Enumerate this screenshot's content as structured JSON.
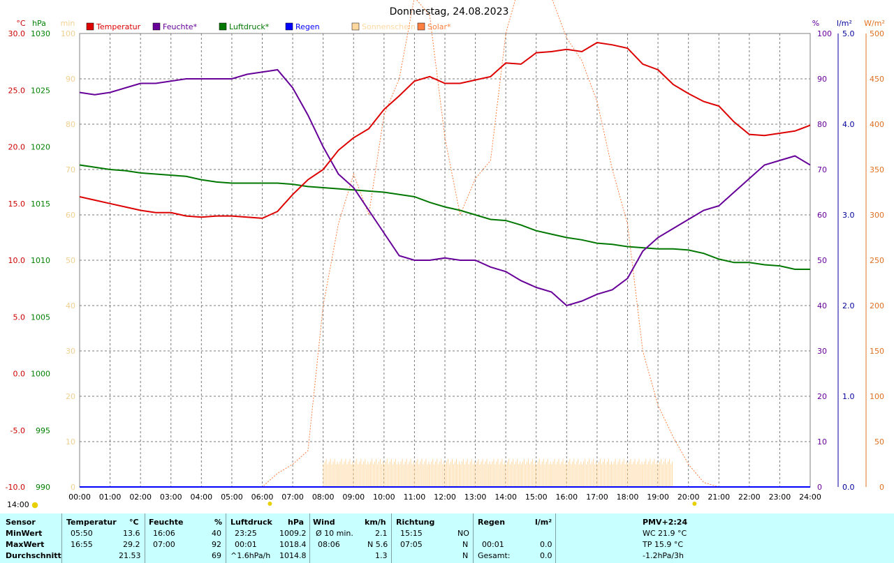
{
  "title": "Donnerstag, 24.08.2023",
  "axes": {
    "left1": {
      "unit": "°C",
      "ticks": [
        "30.0",
        "25.0",
        "20.0",
        "15.0",
        "10.0",
        "5.0",
        "0.0",
        "-5.0",
        "-10.0"
      ],
      "color": "#cc0000"
    },
    "left2": {
      "unit": "hPa",
      "ticks": [
        "1030",
        "1025",
        "1020",
        "1015",
        "1010",
        "1005",
        "1000",
        "995",
        "990"
      ],
      "color": "#008000"
    },
    "left3": {
      "unit": "min",
      "ticks": [
        "100",
        "90",
        "80",
        "70",
        "60",
        "50",
        "40",
        "30",
        "20",
        "10",
        "0"
      ],
      "color": "#f0d090"
    },
    "right1": {
      "unit": "%",
      "ticks": [
        "100",
        "90",
        "80",
        "70",
        "60",
        "50",
        "40",
        "30",
        "20",
        "10",
        "0"
      ],
      "color": "#660099"
    },
    "right2": {
      "unit": "l/m²",
      "ticks": [
        "5.0",
        "4.0",
        "3.0",
        "2.0",
        "1.0",
        "0.0"
      ],
      "color": "#000099"
    },
    "right3": {
      "unit": "W/m²",
      "ticks": [
        "500",
        "450",
        "400",
        "350",
        "300",
        "250",
        "200",
        "150",
        "100",
        "50",
        "0"
      ],
      "color": "#e07020"
    }
  },
  "legend": [
    {
      "label": "Temperatur",
      "color": "#dd0000"
    },
    {
      "label": "Feuchte*",
      "color": "#660099"
    },
    {
      "label": "Luftdruck*",
      "color": "#007700"
    },
    {
      "label": "Regen",
      "color": "#0000ff"
    },
    {
      "label": "Sonnenschein",
      "color": "#ffd8a0"
    },
    {
      "label": "Solar*",
      "color": "#ff8040"
    }
  ],
  "chart_data": {
    "type": "line",
    "x_ticks": [
      "00:00",
      "01:00",
      "02:00",
      "03:00",
      "04:00",
      "05:00",
      "06:00",
      "07:00",
      "08:00",
      "09:00",
      "10:00",
      "11:00",
      "12:00",
      "13:00",
      "14:00",
      "15:00",
      "16:00",
      "17:00",
      "18:00",
      "19:00",
      "20:00",
      "21:00",
      "22:00",
      "23:00",
      "24:00"
    ],
    "x": [
      0,
      0.5,
      1,
      1.5,
      2,
      2.5,
      3,
      3.5,
      4,
      4.5,
      5,
      5.5,
      6,
      6.5,
      7,
      7.5,
      8,
      8.5,
      9,
      9.5,
      10,
      10.5,
      11,
      11.5,
      12,
      12.5,
      13,
      13.5,
      14,
      14.5,
      15,
      15.5,
      16,
      16.5,
      17,
      17.5,
      18,
      18.5,
      19,
      19.5,
      20,
      20.5,
      21,
      21.5,
      22,
      22.5,
      23,
      23.5,
      24
    ],
    "series": [
      {
        "name": "Temperatur",
        "unit": "°C",
        "color": "#dd0000",
        "values": [
          15.6,
          15.3,
          15.0,
          14.7,
          14.4,
          14.2,
          14.2,
          13.9,
          13.8,
          13.9,
          13.9,
          13.8,
          13.7,
          14.3,
          15.8,
          17.1,
          18.0,
          19.7,
          20.8,
          21.6,
          23.3,
          24.5,
          25.8,
          26.2,
          25.6,
          25.6,
          25.9,
          26.2,
          27.4,
          27.3,
          28.3,
          28.4,
          28.6,
          28.4,
          29.2,
          29.0,
          28.7,
          27.3,
          26.8,
          25.5,
          24.7,
          24.0,
          23.6,
          22.2,
          21.1,
          21.0,
          21.2,
          21.4,
          21.9
        ]
      },
      {
        "name": "Feuchte*",
        "unit": "%",
        "color": "#660099",
        "values": [
          87,
          86.5,
          87,
          88,
          89,
          89,
          89.5,
          90,
          90,
          90,
          90,
          91,
          91.5,
          92,
          88,
          82,
          75,
          69,
          66,
          61,
          56,
          51,
          50,
          50,
          50.5,
          50,
          50,
          48.5,
          47.5,
          45.5,
          44,
          43,
          40,
          41,
          42.5,
          43.5,
          46,
          52,
          55,
          57,
          59,
          61,
          62,
          65,
          68,
          71,
          72,
          73,
          71
        ]
      },
      {
        "name": "Luftdruck*",
        "unit": "hPa",
        "color": "#007700",
        "values": [
          1018.4,
          1018.2,
          1018.0,
          1017.9,
          1017.7,
          1017.6,
          1017.5,
          1017.4,
          1017.1,
          1016.9,
          1016.8,
          1016.8,
          1016.8,
          1016.8,
          1016.7,
          1016.5,
          1016.4,
          1016.3,
          1016.2,
          1016.1,
          1016.0,
          1015.8,
          1015.6,
          1015.1,
          1014.7,
          1014.4,
          1014.0,
          1013.6,
          1013.5,
          1013.1,
          1012.6,
          1012.3,
          1012.0,
          1011.8,
          1011.5,
          1011.4,
          1011.2,
          1011.1,
          1011.0,
          1011.0,
          1010.9,
          1010.6,
          1010.1,
          1009.8,
          1009.8,
          1009.6,
          1009.5,
          1009.2,
          1009.2
        ]
      },
      {
        "name": "Solar*",
        "unit": "W/m²",
        "color": "#ff8040",
        "values": [
          0,
          0,
          0,
          0,
          0,
          0,
          0,
          0,
          0,
          0,
          0,
          0,
          0,
          15,
          25,
          40,
          200,
          290,
          345,
          300,
          410,
          450,
          540,
          520,
          385,
          300,
          340,
          360,
          500,
          560,
          575,
          540,
          495,
          470,
          425,
          350,
          290,
          150,
          90,
          55,
          25,
          5,
          0,
          0,
          0,
          0,
          0,
          0,
          0
        ]
      },
      {
        "name": "Sonnenschein",
        "unit": "min",
        "color": "#ffd8a0",
        "values": [
          0,
          0,
          0,
          0,
          0,
          0,
          0,
          0,
          0,
          0,
          0,
          0,
          0,
          0,
          0,
          0,
          5,
          5,
          5,
          5,
          5,
          5,
          5,
          5,
          5,
          5,
          5,
          5,
          5,
          5,
          5,
          5,
          5,
          5,
          5,
          5,
          5,
          5,
          5,
          0,
          0,
          0,
          0,
          0,
          0,
          0,
          0,
          0,
          0
        ]
      },
      {
        "name": "Regen",
        "unit": "l/m²",
        "color": "#0000ff",
        "values": [
          0,
          0,
          0,
          0,
          0,
          0,
          0,
          0,
          0,
          0,
          0,
          0,
          0,
          0,
          0,
          0,
          0,
          0,
          0,
          0,
          0,
          0,
          0,
          0,
          0,
          0,
          0,
          0,
          0,
          0,
          0,
          0,
          0,
          0,
          0,
          0,
          0,
          0,
          0,
          0,
          0,
          0,
          0,
          0,
          0,
          0,
          0,
          0,
          0
        ]
      }
    ],
    "ylim_temp": [
      -10,
      30
    ],
    "ylim_hpa": [
      990,
      1030
    ],
    "ylim_pct": [
      0,
      100
    ],
    "ylim_rain": [
      0,
      5
    ],
    "ylim_solar": [
      0,
      500
    ],
    "ylim_min": [
      0,
      100
    ],
    "grid": true
  },
  "marker_label": "14:00",
  "summary": {
    "headers": {
      "sensor": "Sensor",
      "temp": "Temperatur",
      "temp_unit": "°C",
      "hum": "Feuchte",
      "hum_unit": "%",
      "press": "Luftdruck",
      "press_unit": "hPa",
      "wind": "Wind",
      "wind_unit": "km/h",
      "dir": "Richtung",
      "rain": "Regen",
      "rain_unit": "l/m²",
      "pmv": "PMV+2:24"
    },
    "rows": {
      "min": {
        "label": "MinWert",
        "temp_time": "05:50",
        "temp_val": "13.6",
        "hum_time": "16:06",
        "hum_val": "40",
        "press_time": "23:25",
        "press_val": "1009.2",
        "wind_label": "Ø 10 min.",
        "wind_val": "2.1",
        "dir_time": "15:15",
        "dir_val": "NO",
        "extra": "WC 21.9 °C"
      },
      "max": {
        "label": "MaxWert",
        "temp_time": "16:55",
        "temp_val": "29.2",
        "hum_time": "07:00",
        "hum_val": "92",
        "press_time": "00:01",
        "press_val": "1018.4",
        "wind_time": "08:06",
        "wind_val": "N 5.6",
        "dir_time": "07:05",
        "dir_val": "N",
        "rain_time": "00:01",
        "rain_val": "0.0",
        "extra": "TP 15.9 °C"
      },
      "avg": {
        "label": "Durchschnitt",
        "temp_val": "21.53",
        "hum_val": "69",
        "press_label": "^1.6hPa/h",
        "press_val": "1014.8",
        "wind_val": "1.3",
        "dir_val": "N",
        "rain_label": "Gesamt:",
        "rain_val": "0.0",
        "extra": "-1.2hPa/3h"
      }
    }
  }
}
